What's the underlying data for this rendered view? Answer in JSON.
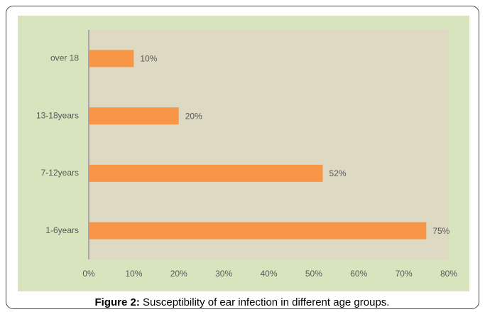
{
  "chart_data": {
    "type": "hbar",
    "categories": [
      "over 18",
      "13-18years",
      "7-12years",
      "1-6years"
    ],
    "values": [
      10,
      20,
      52,
      75
    ],
    "value_labels": [
      "10%",
      "20%",
      "52%",
      "75%"
    ],
    "color": "#f79646",
    "xlim": [
      0,
      80
    ],
    "xticks": [
      {
        "value": 0,
        "label": "0%"
      },
      {
        "value": 10,
        "label": "10%"
      },
      {
        "value": 20,
        "label": "20%"
      },
      {
        "value": 30,
        "label": "30%"
      },
      {
        "value": 40,
        "label": "40%"
      },
      {
        "value": 50,
        "label": "50%"
      },
      {
        "value": 60,
        "label": "60%"
      },
      {
        "value": 70,
        "label": "70%"
      },
      {
        "value": 80,
        "label": "80%"
      }
    ],
    "grid": false
  },
  "figure": {
    "label": "Figure 2:",
    "caption": "Susceptibility of ear infection in different age groups."
  }
}
